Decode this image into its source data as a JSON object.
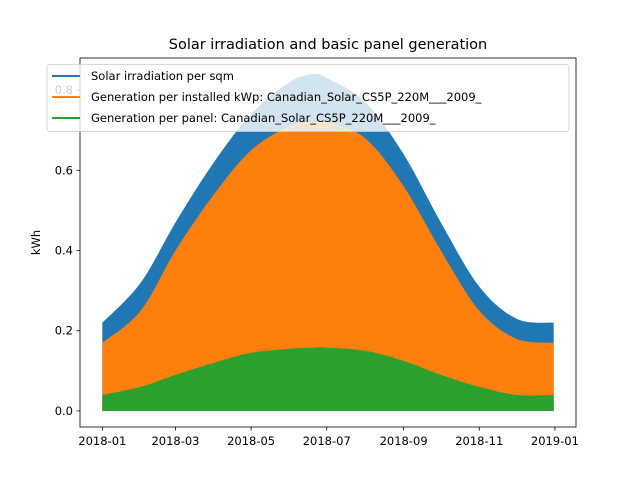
{
  "chart_data": {
    "type": "area",
    "title": "Solar irradiation and basic panel generation",
    "xlabel": "",
    "ylabel": "kWh",
    "xlim": [
      "2017-12-14",
      "2019-01-18"
    ],
    "ylim": [
      -0.04,
      0.88
    ],
    "x_ticks": [
      "2018-01",
      "2018-03",
      "2018-05",
      "2018-07",
      "2018-09",
      "2018-11",
      "2019-01"
    ],
    "y_ticks": [
      "0.0",
      "0.2",
      "0.4",
      "0.6",
      "0.8"
    ],
    "grid": false,
    "legend_position": "top-left",
    "x": [
      "2018-01-01",
      "2018-02-01",
      "2018-03-01",
      "2018-04-01",
      "2018-05-01",
      "2018-06-01",
      "2018-06-21",
      "2018-07-01",
      "2018-08-01",
      "2018-09-01",
      "2018-10-01",
      "2018-11-01",
      "2018-12-01",
      "2018-12-31"
    ],
    "series": [
      {
        "name": "Solar irradiation per sqm",
        "color": "#1f77b4",
        "values": [
          0.22,
          0.32,
          0.47,
          0.62,
          0.74,
          0.82,
          0.84,
          0.83,
          0.77,
          0.64,
          0.47,
          0.31,
          0.23,
          0.22
        ]
      },
      {
        "name": "Generation per installed kWp: Canadian_Solar_CS5P_220M___2009_",
        "color": "#ff7f0e",
        "values": [
          0.17,
          0.25,
          0.4,
          0.54,
          0.65,
          0.71,
          0.72,
          0.72,
          0.68,
          0.56,
          0.4,
          0.25,
          0.18,
          0.17
        ]
      },
      {
        "name": "Generation per panel: Canadian_Solar_CS5P_220M___2009_",
        "color": "#2ca02c",
        "values": [
          0.04,
          0.06,
          0.09,
          0.12,
          0.145,
          0.155,
          0.158,
          0.158,
          0.15,
          0.125,
          0.09,
          0.06,
          0.04,
          0.04
        ]
      }
    ]
  }
}
